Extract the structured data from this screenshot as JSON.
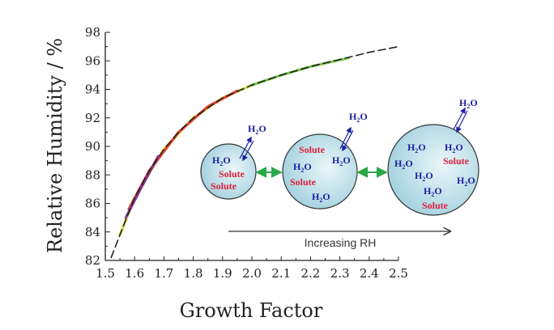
{
  "chart_data": {
    "type": "line",
    "title": "",
    "xlabel": "Growth Factor",
    "ylabel": "Relative Humidity / %",
    "xlim": [
      1.5,
      2.5
    ],
    "ylim": [
      82,
      98
    ],
    "x_ticks": [
      "1.5",
      "1.6",
      "1.7",
      "1.8",
      "1.9",
      "2.0",
      "2.1",
      "2.2",
      "2.3",
      "2.4",
      "2.5"
    ],
    "y_ticks": [
      "82",
      "84",
      "86",
      "88",
      "90",
      "92",
      "94",
      "96",
      "98"
    ],
    "grid": false,
    "series": [
      {
        "style": "dashed",
        "color": "#222222",
        "x": [
          1.52,
          1.55,
          1.6,
          1.65,
          1.7,
          1.75,
          1.8,
          1.9,
          2.0,
          2.1,
          2.2,
          2.3,
          2.4,
          2.5
        ],
        "y": [
          82.2,
          83.8,
          86.4,
          88.3,
          89.8,
          91.0,
          92.0,
          93.4,
          94.3,
          95.0,
          95.6,
          96.1,
          96.6,
          97.0
        ]
      },
      {
        "color": "#d4dc2a",
        "x": [
          1.55,
          1.6,
          1.7,
          1.8,
          1.9,
          2.0
        ],
        "y": [
          83.8,
          86.4,
          89.8,
          92.0,
          93.4,
          94.3
        ]
      },
      {
        "color": "#e03020",
        "x": [
          1.58,
          1.65,
          1.75,
          1.85,
          1.95
        ],
        "y": [
          85.6,
          88.3,
          91.0,
          92.8,
          93.9
        ]
      },
      {
        "color": "#7a2a9a",
        "x": [
          1.57,
          1.62,
          1.68
        ],
        "y": [
          85.0,
          87.0,
          89.3
        ]
      },
      {
        "color": "#6ac23a",
        "x": [
          2.0,
          2.1,
          2.2,
          2.33
        ],
        "y": [
          94.3,
          95.0,
          95.6,
          96.2
        ]
      }
    ]
  },
  "inset": {
    "molecule_main": "H",
    "molecule_sub": "2",
    "molecule_end": "O",
    "solute_label": "Solute",
    "arrow_label": "Increasing RH"
  }
}
